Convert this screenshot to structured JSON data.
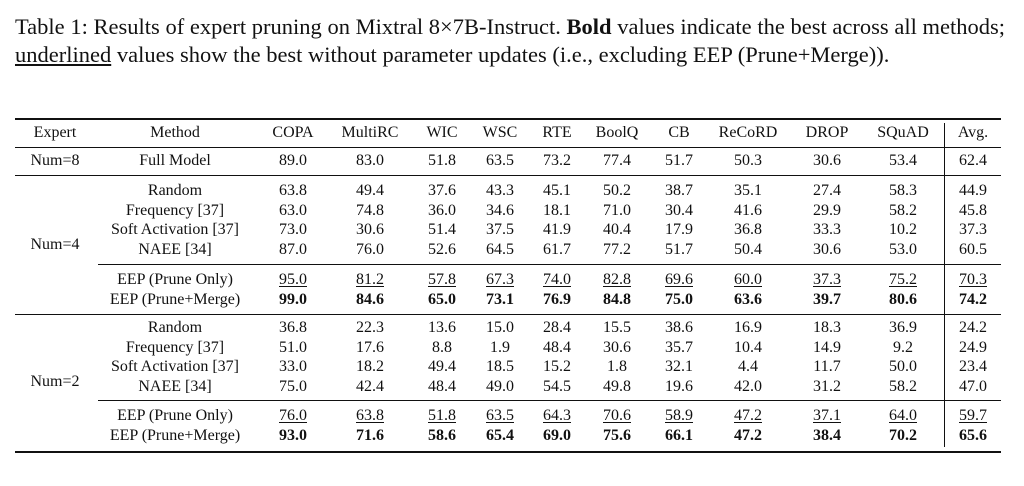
{
  "caption": {
    "segments": [
      {
        "text": "Table 1:  Results of expert pruning on Mixtral 8×7B-Instruct. ",
        "style": "normal"
      },
      {
        "text": "Bold",
        "style": "bold"
      },
      {
        "text": " values indicate the best across all methods; ",
        "style": "normal"
      },
      {
        "text": "underlined",
        "style": "underline"
      },
      {
        "text": " values show the best without parameter updates (i.e., excluding EEP (Prune+Merge)).",
        "style": "normal"
      }
    ]
  },
  "table": {
    "header": [
      "Expert",
      "Method",
      "COPA",
      "MultiRC",
      "WIC",
      "WSC",
      "RTE",
      "BoolQ",
      "CB",
      "ReCoRD",
      "DROP",
      "SQuAD",
      "Avg."
    ],
    "groups": [
      {
        "expert": "Num=8",
        "blocks": [
          [
            {
              "method": "Full Model",
              "values": [
                "89.0",
                "83.0",
                "51.8",
                "63.5",
                "73.2",
                "77.4",
                "51.7",
                "50.3",
                "30.6",
                "53.4",
                "62.4"
              ]
            }
          ]
        ]
      },
      {
        "expert": "Num=4",
        "blocks": [
          [
            {
              "method": "Random",
              "values": [
                "63.8",
                "49.4",
                "37.6",
                "43.3",
                "45.1",
                "50.2",
                "38.7",
                "35.1",
                "27.4",
                "58.3",
                "44.9"
              ]
            },
            {
              "method": "Frequency [37]",
              "values": [
                "63.0",
                "74.8",
                "36.0",
                "34.6",
                "18.1",
                "71.0",
                "30.4",
                "41.6",
                "29.9",
                "58.2",
                "45.8"
              ]
            },
            {
              "method": "Soft Activation [37]",
              "values": [
                "73.0",
                "30.6",
                "51.4",
                "37.5",
                "41.9",
                "40.4",
                "17.9",
                "36.8",
                "33.3",
                "10.2",
                "37.3"
              ]
            },
            {
              "method": "NAEE [34]",
              "values": [
                "87.0",
                "76.0",
                "52.6",
                "64.5",
                "61.7",
                "77.2",
                "51.7",
                "50.4",
                "30.6",
                "53.0",
                "60.5"
              ]
            }
          ],
          [
            {
              "method": "EEP (Prune Only)",
              "style": "underline",
              "values": [
                "95.0",
                "81.2",
                "57.8",
                "67.3",
                "74.0",
                "82.8",
                "69.6",
                "60.0",
                "37.3",
                "75.2",
                "70.3"
              ]
            },
            {
              "method": "EEP (Prune+Merge)",
              "style": "bold",
              "values": [
                "99.0",
                "84.6",
                "65.0",
                "73.1",
                "76.9",
                "84.8",
                "75.0",
                "63.6",
                "39.7",
                "80.6",
                "74.2"
              ]
            }
          ]
        ]
      },
      {
        "expert": "Num=2",
        "blocks": [
          [
            {
              "method": "Random",
              "values": [
                "36.8",
                "22.3",
                "13.6",
                "15.0",
                "28.4",
                "15.5",
                "38.6",
                "16.9",
                "18.3",
                "36.9",
                "24.2"
              ]
            },
            {
              "method": "Frequency [37]",
              "values": [
                "51.0",
                "17.6",
                "8.8",
                "1.9",
                "48.4",
                "30.6",
                "35.7",
                "10.4",
                "14.9",
                "9.2",
                "24.9"
              ]
            },
            {
              "method": "Soft Activation [37]",
              "values": [
                "33.0",
                "18.2",
                "49.4",
                "18.5",
                "15.2",
                "1.8",
                "32.1",
                "4.4",
                "11.7",
                "50.0",
                "23.4"
              ]
            },
            {
              "method": "NAEE [34]",
              "values": [
                "75.0",
                "42.4",
                "48.4",
                "49.0",
                "54.5",
                "49.8",
                "19.6",
                "42.0",
                "31.2",
                "58.2",
                "47.0"
              ]
            }
          ],
          [
            {
              "method": "EEP (Prune Only)",
              "style": "underline",
              "values": [
                "76.0",
                "63.8",
                "51.8",
                "63.5",
                "64.3",
                "70.6",
                "58.9",
                "47.2",
                "37.1",
                "64.0",
                "59.7"
              ]
            },
            {
              "method": "EEP (Prune+Merge)",
              "style": "bold",
              "values": [
                "93.0",
                "71.6",
                "58.6",
                "65.4",
                "69.0",
                "75.6",
                "66.1",
                "47.2",
                "38.4",
                "70.2",
                "65.6"
              ]
            }
          ]
        ]
      }
    ]
  }
}
